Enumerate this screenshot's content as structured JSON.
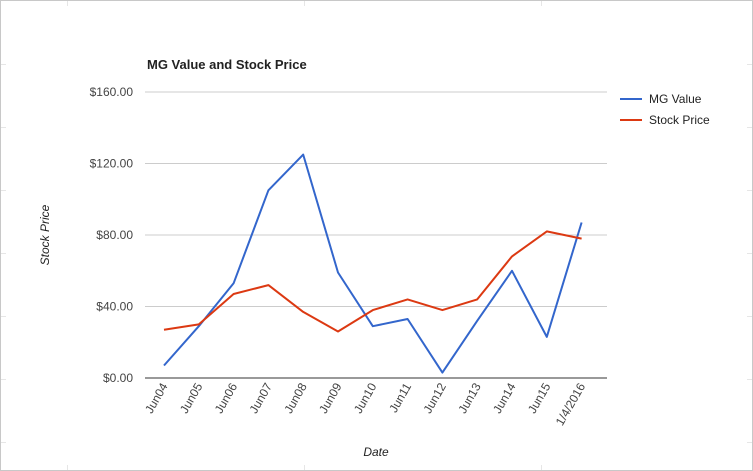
{
  "chart_data": {
    "type": "line",
    "title": "MG Value and Stock Price",
    "xlabel": "Date",
    "ylabel": "Stock Price",
    "categories": [
      "Jun04",
      "Jun05",
      "Jun06",
      "Jun07",
      "Jun08",
      "Jun09",
      "Jun10",
      "Jun11",
      "Jun12",
      "Jun13",
      "Jun14",
      "Jun15",
      "1/4/2016"
    ],
    "series": [
      {
        "name": "MG Value",
        "color": "#3366cc",
        "values": [
          7,
          29,
          53,
          105,
          125,
          59,
          29,
          33,
          3,
          32,
          60,
          23,
          87
        ]
      },
      {
        "name": "Stock Price",
        "color": "#dc3912",
        "values": [
          27,
          30,
          47,
          52,
          37,
          26,
          38,
          44,
          38,
          44,
          68,
          82,
          78
        ]
      }
    ],
    "y_ticks": [
      "$0.00",
      "$40.00",
      "$80.00",
      "$120.00",
      "$160.00"
    ],
    "ylim": [
      0,
      160
    ],
    "grid": true,
    "legend_position": "right"
  }
}
